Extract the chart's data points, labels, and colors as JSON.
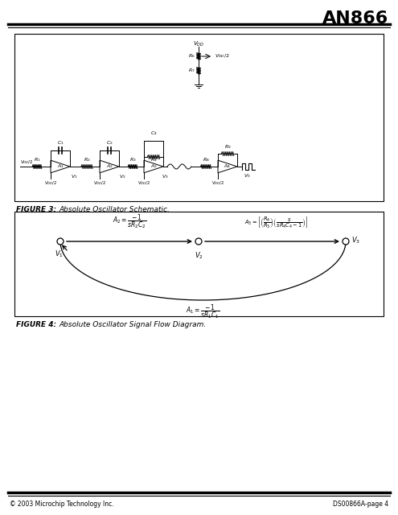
{
  "title": "AN866",
  "bg_color": "#ffffff",
  "title_fontsize": 16,
  "footer_left": "© 2003 Microchip Technology Inc.",
  "footer_right": "DS00866A-page 4",
  "figure3_caption": "FIGURE 3:",
  "figure3_text": "Absolute Oscillator Schematic.",
  "figure4_caption": "FIGURE 4:",
  "figure4_text": "Absolute Oscillator Signal Flow Diagram."
}
